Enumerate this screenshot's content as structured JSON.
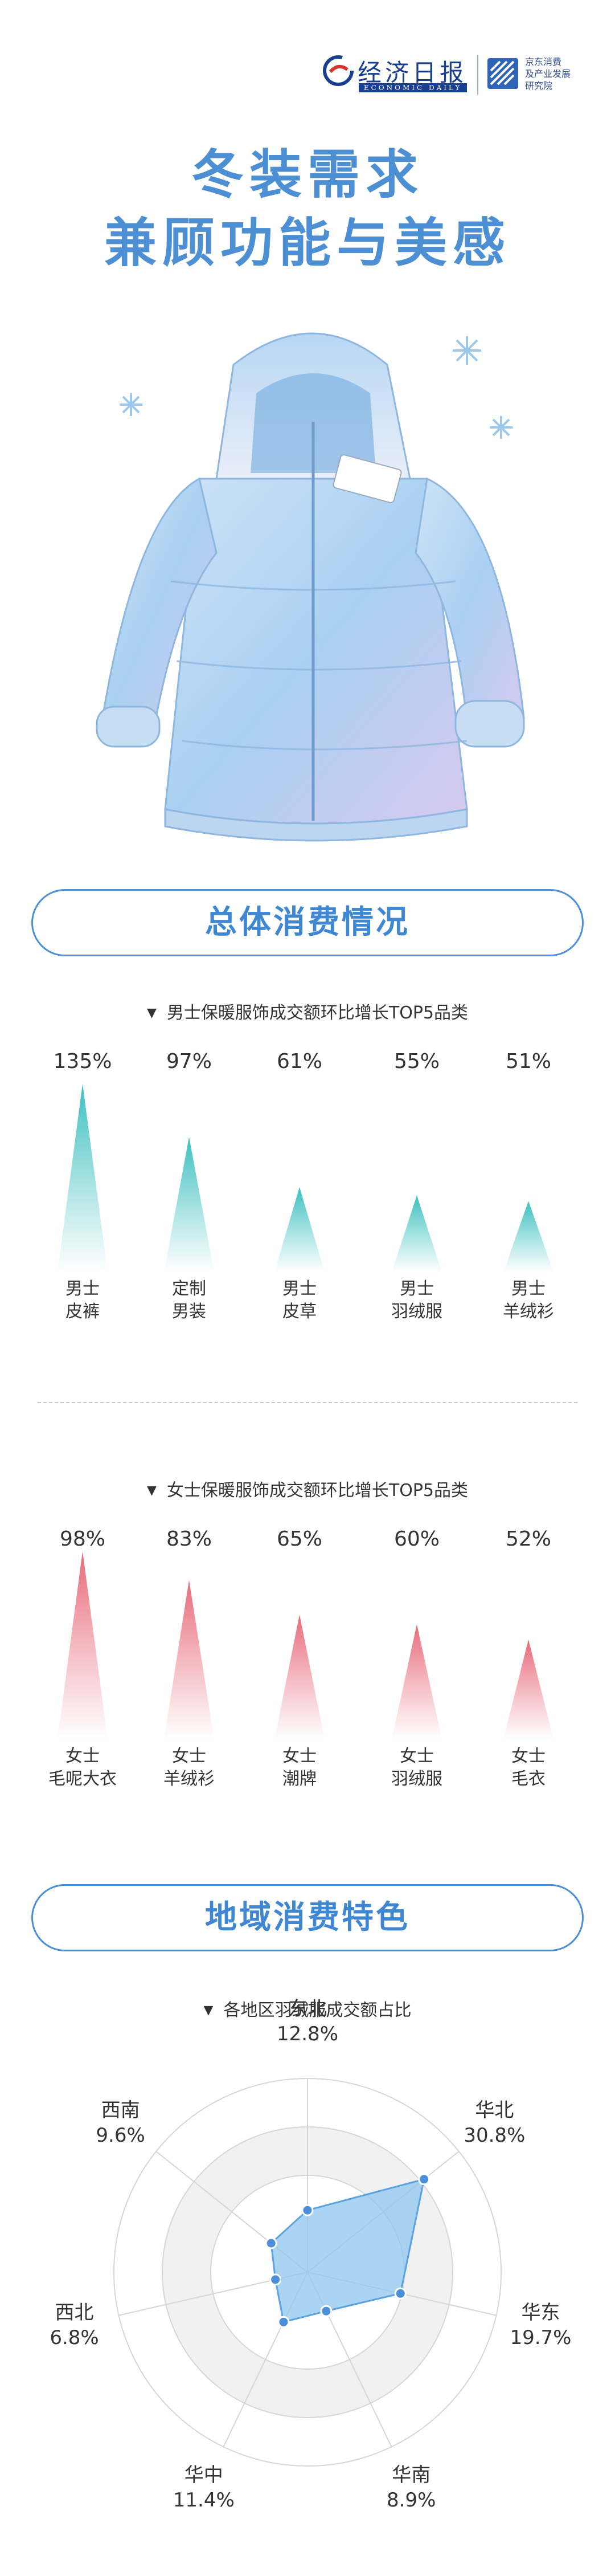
{
  "header": {
    "paper_name": "经济日报",
    "paper_sub": "ECONOMIC DAILY",
    "jd_lines": [
      "京东消费",
      "及产业发展",
      "研究院"
    ]
  },
  "title": {
    "line1": "冬装需求",
    "line2": "兼顾功能与美感"
  },
  "illustration": {
    "icon": "puffer-jacket-icon",
    "snow": "snowflake-icon"
  },
  "sections": {
    "overall": "总体消费情况",
    "regional": "地域消费特色"
  },
  "colors": {
    "teal": "#3cbfbf",
    "pink": "#e86a7a",
    "blue": "#4a8fd8",
    "radar_fill": "#8fc6ef"
  },
  "chart_data": [
    {
      "type": "bar",
      "title": "男士保暖服饰成交额环比增长TOP5品类",
      "categories": [
        [
          "男士",
          "皮裤"
        ],
        [
          "定制",
          "男装"
        ],
        [
          "男士",
          "皮草"
        ],
        [
          "男士",
          "羽绒服"
        ],
        [
          "男士",
          "羊绒衫"
        ]
      ],
      "values": [
        135,
        97,
        61,
        55,
        51
      ],
      "labels": [
        "135%",
        "97%",
        "61%",
        "55%",
        "51%"
      ],
      "unit": "%",
      "mark": "triangle",
      "color": "#3cbfbf"
    },
    {
      "type": "bar",
      "title": "女士保暖服饰成交额环比增长TOP5品类",
      "categories": [
        [
          "女士",
          "毛呢大衣"
        ],
        [
          "女士",
          "羊绒衫"
        ],
        [
          "女士",
          "潮牌"
        ],
        [
          "女士",
          "羽绒服"
        ],
        [
          "女士",
          "毛衣"
        ]
      ],
      "values": [
        98,
        83,
        65,
        60,
        52
      ],
      "labels": [
        "98%",
        "83%",
        "65%",
        "60%",
        "52%"
      ],
      "unit": "%",
      "mark": "triangle",
      "color": "#e86a7a"
    },
    {
      "type": "radar",
      "title": "各地区羽绒服成交额占比",
      "categories": [
        "东北",
        "华北",
        "华东",
        "华南",
        "华中",
        "西北",
        "西南"
      ],
      "values": [
        12.8,
        30.8,
        19.7,
        8.9,
        11.4,
        6.8,
        9.6
      ],
      "labels": [
        "12.8%",
        "30.8%",
        "19.7%",
        "8.9%",
        "11.4%",
        "6.8%",
        "9.6%"
      ],
      "rlim": [
        0,
        40
      ],
      "grid": true
    }
  ]
}
